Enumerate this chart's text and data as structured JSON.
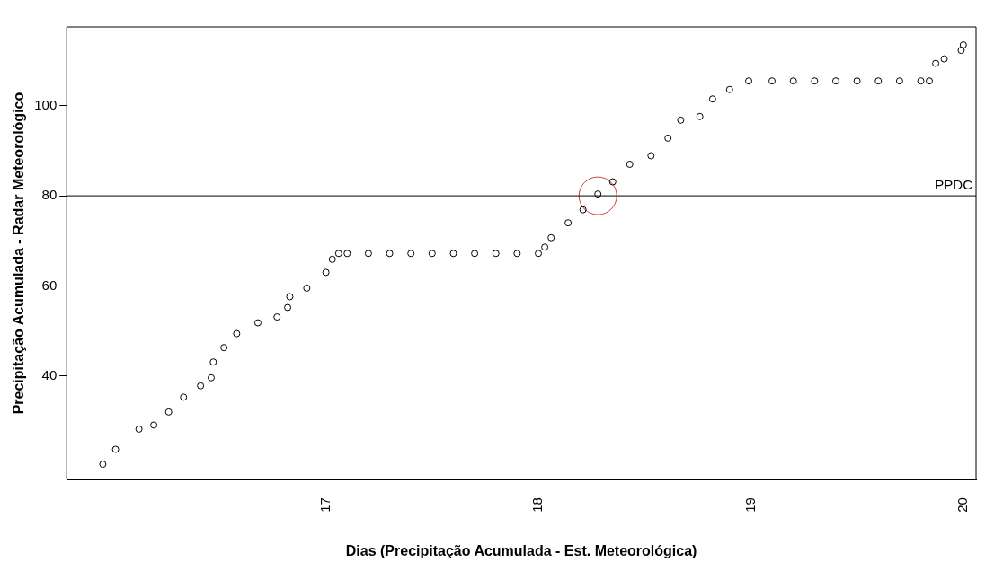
{
  "chart_data": {
    "type": "scatter",
    "xlabel": "Dias (Precipitação Acumulada - Est. Meteorológica)",
    "ylabel": "Precipitação Acumulada - Radar Meteorológico",
    "series": [
      {
        "color": "#000000",
        "x": [
          15.95,
          16.01,
          16.12,
          16.19,
          16.26,
          16.33,
          16.41,
          16.46,
          16.47,
          16.52,
          16.58,
          16.68,
          16.77,
          16.82,
          16.83,
          16.91,
          17.0,
          17.03,
          17.06,
          17.1,
          17.2,
          17.3,
          17.4,
          17.5,
          17.6,
          17.7,
          17.8,
          17.9,
          18.0,
          18.03,
          18.06,
          18.14,
          18.21,
          18.28,
          18.35,
          18.43,
          18.53,
          18.61,
          18.67,
          18.76,
          18.82,
          18.9,
          18.99,
          19.1,
          19.2,
          19.3,
          19.4,
          19.5,
          19.6,
          19.7,
          19.8,
          19.84,
          19.87,
          19.91,
          19.99,
          20.0
        ],
        "values": [
          20.4,
          23.7,
          28.2,
          29.1,
          32.0,
          35.3,
          37.8,
          39.6,
          43.1,
          46.3,
          49.4,
          51.8,
          53.1,
          55.2,
          57.6,
          59.5,
          63.0,
          65.9,
          67.2,
          67.2,
          67.2,
          67.2,
          67.2,
          67.2,
          67.2,
          67.2,
          67.2,
          67.2,
          67.2,
          68.6,
          70.7,
          74.0,
          76.9,
          80.4,
          83.1,
          87.0,
          88.9,
          92.8,
          96.8,
          97.6,
          101.5,
          103.6,
          105.5,
          105.5,
          105.5,
          105.5,
          105.5,
          105.5,
          105.5,
          105.5,
          105.5,
          105.5,
          109.4,
          110.4,
          112.3,
          113.5
        ]
      },
      {
        "color": "#d04040",
        "x": [
          18.28
        ],
        "values": [
          80
        ]
      }
    ],
    "marker": "circle",
    "xlim": [
      15.78,
      20.06
    ],
    "xticks": [
      17,
      18,
      19,
      20
    ],
    "ylim": [
      17,
      117.5
    ],
    "yticks": [
      40,
      60,
      80,
      100
    ],
    "grid": false,
    "legend": false,
    "ref_lines": [
      {
        "axis": "y",
        "value": 80,
        "label": "PPDC",
        "color": "#000000"
      }
    ]
  }
}
